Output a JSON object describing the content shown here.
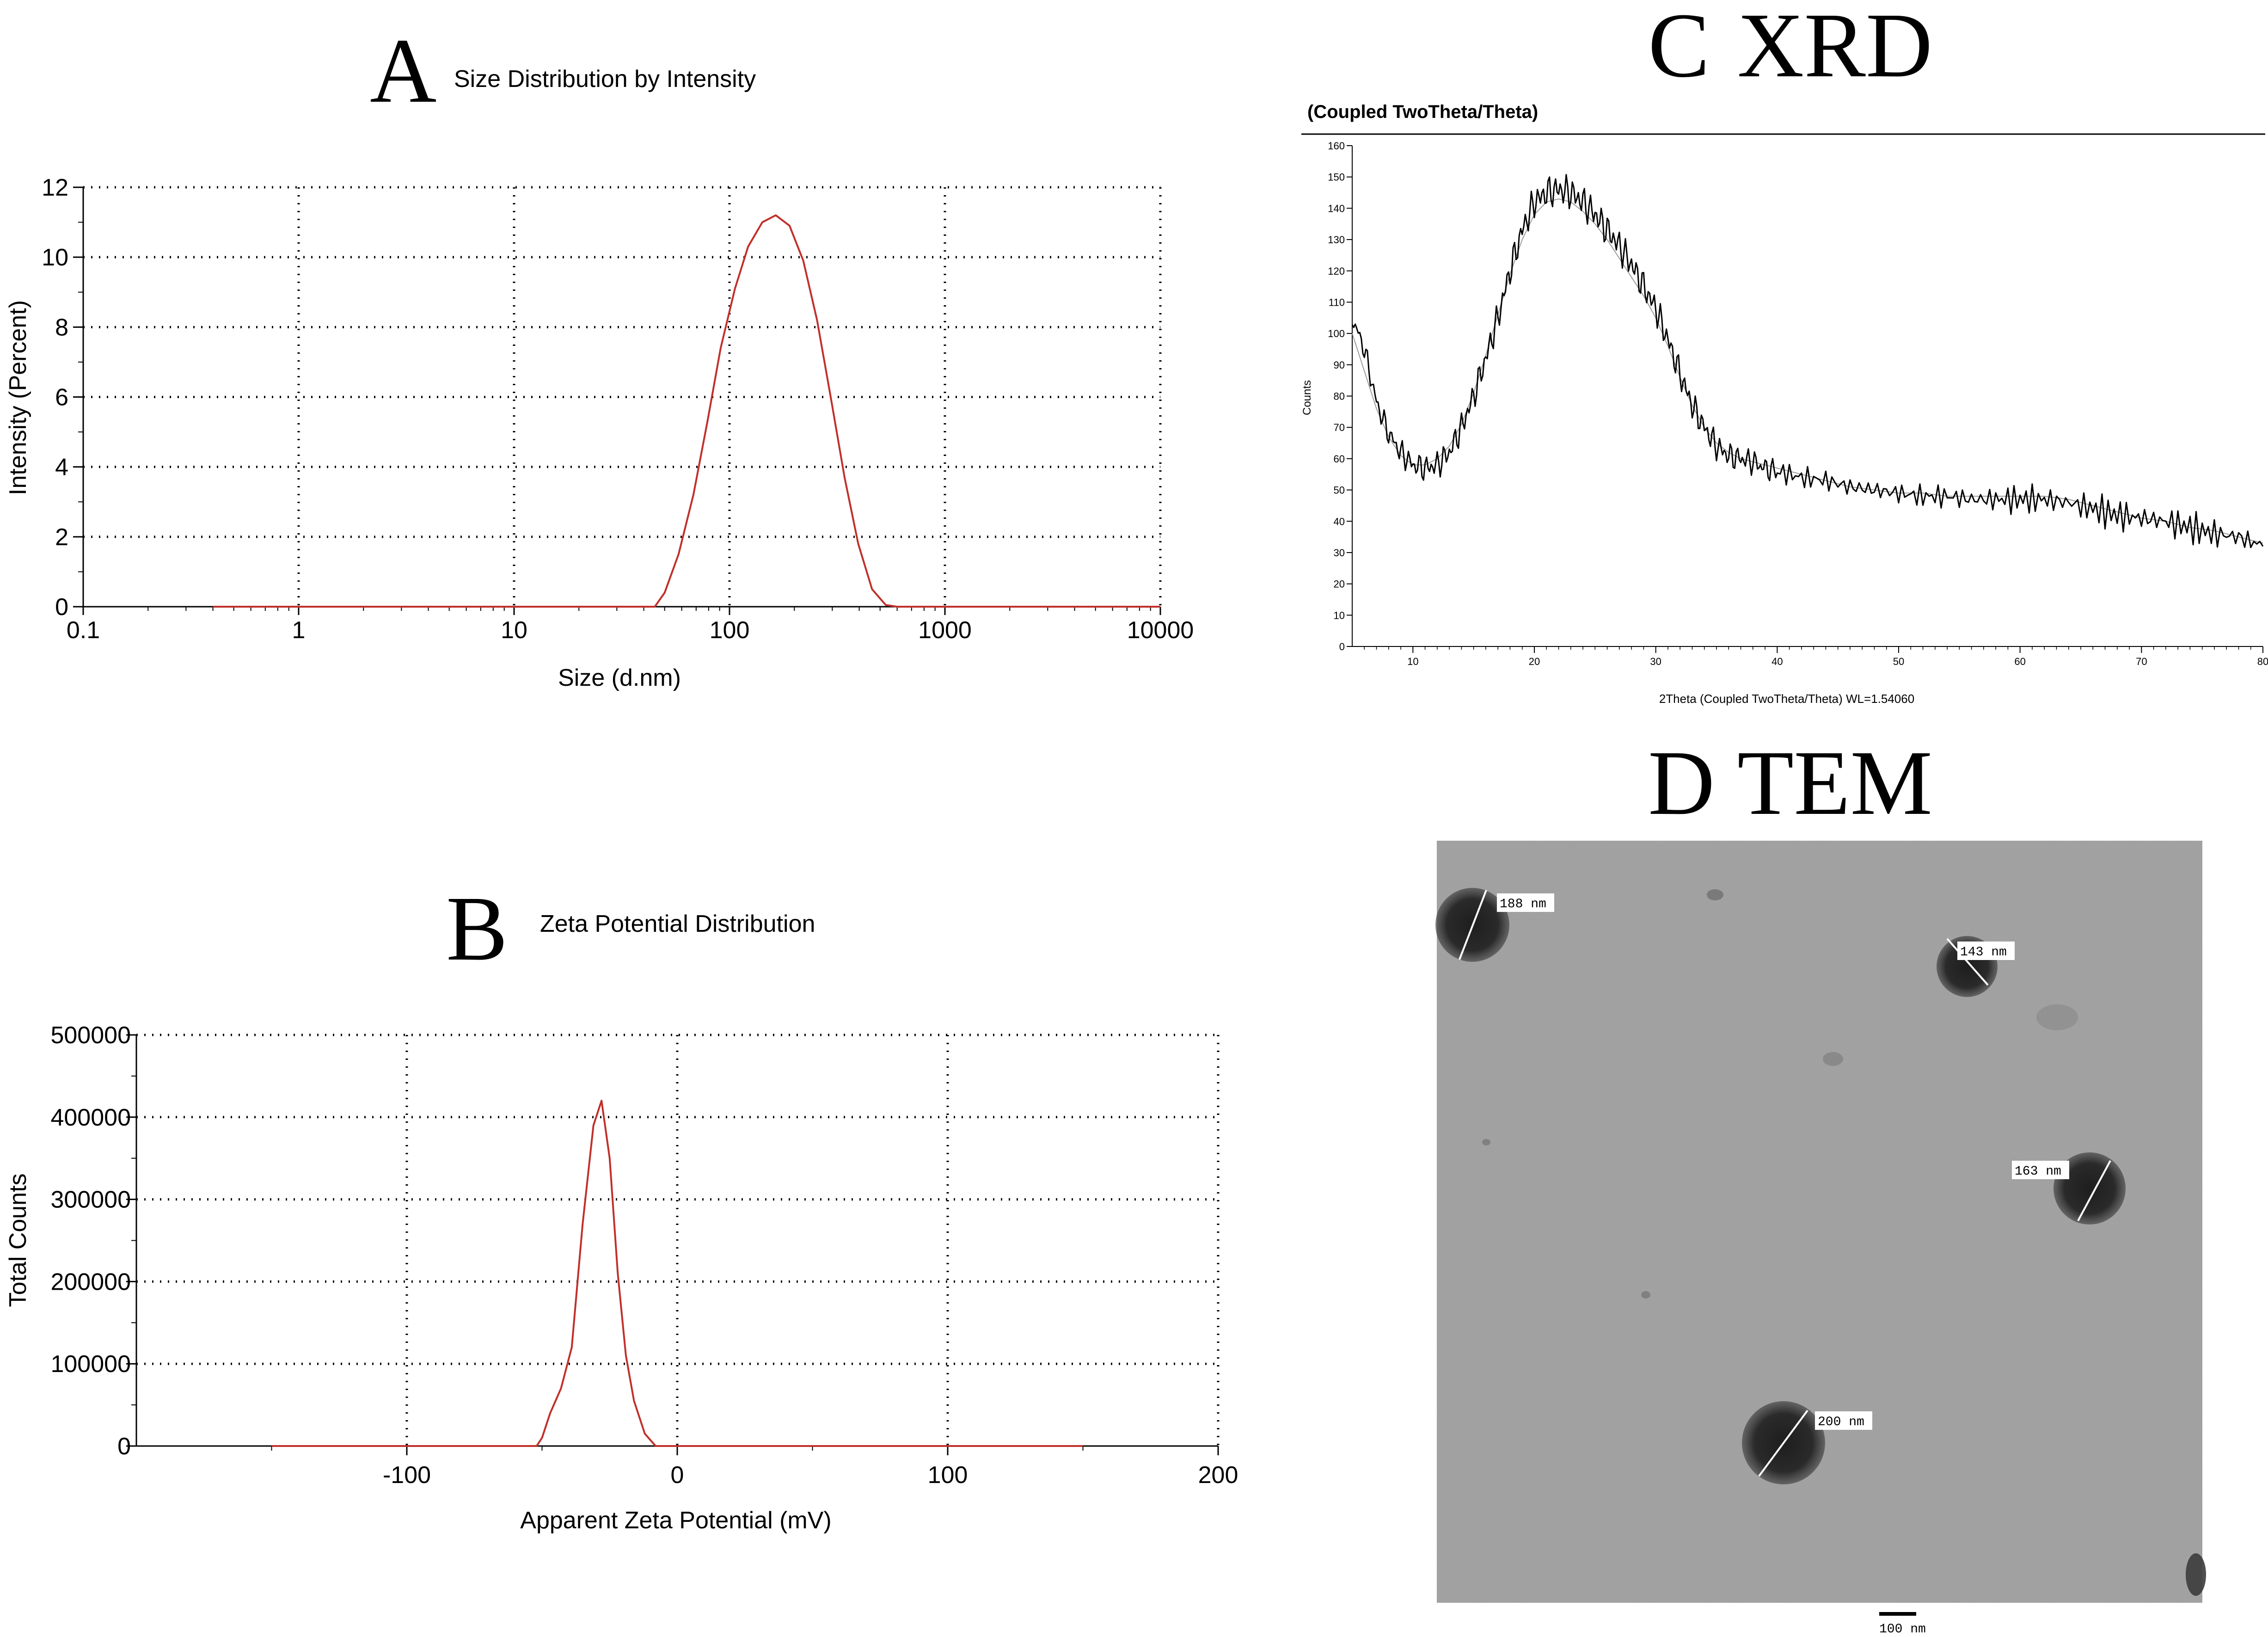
{
  "chart_data": [
    {
      "panel": "A",
      "type": "line",
      "title": "Size Distribution by Intensity",
      "xlabel": "Size (d.nm)",
      "ylabel": "Intensity (Percent)",
      "xscale": "log",
      "xlim": [
        0.1,
        10000
      ],
      "ylim": [
        0,
        12
      ],
      "xticks": [
        "0.1",
        "1",
        "10",
        "100",
        "1000",
        "10000"
      ],
      "yticks": [
        "0",
        "2",
        "4",
        "6",
        "8",
        "10",
        "12"
      ],
      "grid": true,
      "color": "#c0302b",
      "series": [
        {
          "x": [
            0.4,
            1,
            10,
            40,
            45,
            50,
            58,
            68,
            79,
            91,
            106,
            122,
            142,
            164,
            190,
            220,
            255,
            295,
            342,
            396,
            459,
            531,
            600,
            700,
            1000,
            5000,
            10000
          ],
          "y": [
            0,
            0,
            0,
            0,
            0,
            0.4,
            1.5,
            3.2,
            5.3,
            7.4,
            9.1,
            10.3,
            11.0,
            11.2,
            10.9,
            9.9,
            8.2,
            6.0,
            3.7,
            1.8,
            0.5,
            0.05,
            0,
            0,
            0,
            0,
            0
          ]
        }
      ]
    },
    {
      "panel": "B",
      "type": "line",
      "title": "Zeta Potential Distribution",
      "xlabel": "Apparent Zeta Potential (mV)",
      "ylabel": "Total Counts",
      "xlim": [
        -200,
        200
      ],
      "ylim": [
        0,
        500000
      ],
      "xticks": [
        "-100",
        "0",
        "100",
        "200"
      ],
      "yticks": [
        "0",
        "100000",
        "200000",
        "300000",
        "400000",
        "500000"
      ],
      "grid": true,
      "color": "#c0302b",
      "series": [
        {
          "x": [
            -150,
            -100,
            -60,
            -52,
            -50,
            -47,
            -43,
            -39,
            -35,
            -31,
            -28,
            -25,
            -22,
            -19,
            -16,
            -12,
            -8,
            0,
            50,
            100,
            150
          ],
          "y": [
            0,
            0,
            0,
            0,
            10000,
            40000,
            70000,
            120000,
            270000,
            390000,
            420000,
            350000,
            210000,
            110000,
            55000,
            15000,
            0,
            0,
            0,
            0,
            0
          ]
        }
      ]
    },
    {
      "panel": "C",
      "type": "line",
      "title": "XRD",
      "subtitle": "(Coupled TwoTheta/Theta)",
      "xlabel": "2Theta (Coupled TwoTheta/Theta) WL=1.54060",
      "ylabel": "Counts",
      "xlim": [
        5,
        80
      ],
      "ylim": [
        0,
        160
      ],
      "xticks": [
        "10",
        "20",
        "30",
        "40",
        "50",
        "60",
        "70",
        "80"
      ],
      "yticks": [
        "0",
        "10",
        "20",
        "30",
        "40",
        "50",
        "60",
        "70",
        "80",
        "90",
        "100",
        "110",
        "120",
        "130",
        "140",
        "150",
        "160"
      ],
      "grid": false,
      "series": [
        {
          "role": "measured",
          "color": "#000000",
          "x": [
            5,
            6,
            7,
            8,
            9,
            10,
            11,
            12,
            13,
            14,
            15,
            16,
            17,
            18,
            19,
            20,
            21,
            22,
            23,
            24,
            25,
            26,
            27,
            28,
            29,
            30,
            31,
            32,
            33,
            34,
            35,
            36,
            37,
            38,
            39,
            40,
            42,
            44,
            46,
            48,
            50,
            52,
            54,
            56,
            58,
            60,
            62,
            64,
            66,
            68,
            70,
            72,
            74,
            76,
            78,
            80
          ],
          "y": [
            105,
            95,
            78,
            68,
            62,
            58,
            57,
            58,
            62,
            70,
            80,
            92,
            105,
            120,
            133,
            142,
            145,
            146,
            145,
            142,
            138,
            133,
            128,
            122,
            115,
            108,
            98,
            87,
            77,
            70,
            64,
            61,
            60,
            59,
            57,
            56,
            54,
            53,
            51,
            50,
            49,
            48,
            48,
            47,
            47,
            47,
            47,
            46,
            44,
            42,
            41,
            40,
            38,
            36,
            35,
            32
          ]
        },
        {
          "role": "fit",
          "color": "#9a9a9a",
          "x": [
            5,
            6,
            7,
            8,
            9,
            10,
            11,
            12,
            13,
            14,
            15,
            16,
            17,
            18,
            19,
            20,
            21,
            22,
            23,
            24,
            25,
            26,
            27,
            28,
            29,
            30,
            31,
            32,
            33,
            34,
            35,
            36,
            37,
            38,
            39,
            40,
            42,
            44,
            46,
            48,
            50,
            52,
            54,
            56,
            58,
            60,
            62,
            64,
            66,
            68,
            70,
            72,
            74,
            76,
            78,
            80
          ],
          "y": [
            100,
            88,
            76,
            67,
            61,
            58,
            58,
            60,
            64,
            71,
            81,
            93,
            106,
            119,
            130,
            138,
            142,
            143,
            142,
            139,
            135,
            130,
            124,
            118,
            112,
            105,
            96,
            86,
            77,
            70,
            65,
            62,
            60,
            59,
            58,
            57,
            55,
            53,
            51,
            50,
            49,
            49,
            48,
            48,
            48,
            48,
            48,
            47,
            45,
            43,
            41,
            40,
            38,
            37,
            35,
            33
          ]
        }
      ]
    }
  ],
  "panels": {
    "a_letter": "A",
    "b_letter": "B",
    "c_letter": "C",
    "d_letter": "D",
    "d_title": "TEM"
  },
  "tem": {
    "labels": [
      "188 nm",
      "143 nm",
      "163 nm",
      "200 nm"
    ],
    "scale_bar": "100 nm"
  }
}
